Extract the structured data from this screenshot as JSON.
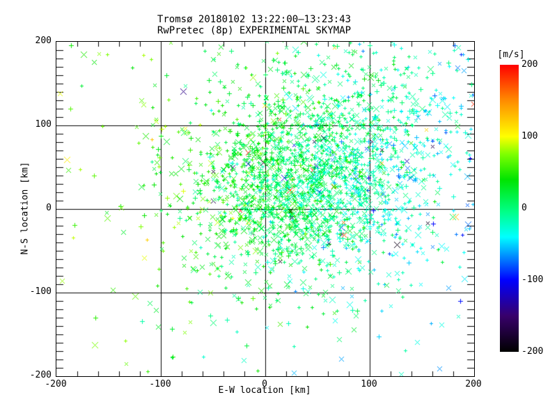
{
  "chart_data": {
    "type": "scatter",
    "title": "Tromsø 20180102 13:22:00–13:23:43",
    "subtitle": "RwPretec (8p) EXPERIMENTAL SKYMAP",
    "xlabel": "E-W location [km]",
    "ylabel": "N-S location [km]",
    "xlim": [
      -200,
      200
    ],
    "ylim": [
      -200,
      200
    ],
    "x_ticks": {
      "values": [
        -200,
        -100,
        0,
        100,
        200
      ],
      "labels": [
        "-200",
        "-100",
        "0",
        "100",
        "200"
      ]
    },
    "y_ticks": {
      "values": [
        -200,
        -100,
        0,
        100,
        200
      ],
      "labels": [
        "-200",
        "-100",
        "0",
        "100",
        "200"
      ]
    },
    "x_minor_step_km": 20,
    "y_minor_step_km": 10,
    "grid": {
      "lines": [
        -100,
        0,
        100
      ],
      "style": "solid",
      "color": "#000000"
    },
    "background": "#ffffff",
    "marker_styles": [
      "plus",
      "cross"
    ],
    "color_scale": {
      "label": "[m/s]",
      "min": -200,
      "max": 200,
      "ticks": {
        "values": [
          200,
          100,
          0,
          -100,
          -200
        ],
        "labels": [
          "200",
          "100",
          "0",
          "-100",
          "-200"
        ]
      },
      "stops": [
        [
          -200,
          "#000000"
        ],
        [
          -150,
          "#38006b"
        ],
        [
          -100,
          "#0000ff"
        ],
        [
          -40,
          "#00ffff"
        ],
        [
          -5,
          "#00ff88"
        ],
        [
          40,
          "#00e400"
        ],
        [
          75,
          "#7dff00"
        ],
        [
          100,
          "#ffff00"
        ],
        [
          150,
          "#ff8c00"
        ],
        [
          200,
          "#ff0000"
        ]
      ]
    },
    "approx_point_count": 2710,
    "point_model": {
      "note": "procedural approximation of the ~2700 radar-echo points; dense core east-northeast of origin, cyan/blue (negative velocity) toward east and south, green/yellow (positive) toward west and north, sparse far west",
      "seed": 20180102,
      "clusters": [
        {
          "n": 1500,
          "cx": 30,
          "cy": 25,
          "sx": 52,
          "sy": 50,
          "plus_frac": 0.5
        },
        {
          "n": 700,
          "cx": 95,
          "cy": 95,
          "sx": 70,
          "sy": 62,
          "plus_frac": 0.75
        },
        {
          "n": 420,
          "cx": 45,
          "cy": 0,
          "sx": 95,
          "sy": 100,
          "plus_frac": 0.5
        },
        {
          "n": 90,
          "uniform": true,
          "plus_frac": 0.45
        }
      ],
      "velocity": {
        "base": 16,
        "dvdx": -0.3,
        "dvdy": 0.05,
        "noise_sd": 26,
        "outlier_frac": 0.016
      }
    }
  }
}
